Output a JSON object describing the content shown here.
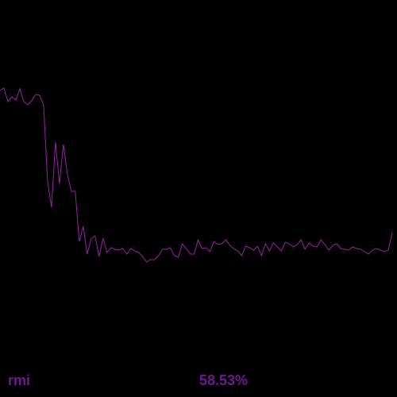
{
  "metric": {
    "name": "rmi",
    "value": "58.53%"
  },
  "colors": {
    "background": "#000000",
    "line": "#9b1fa8",
    "label": "#6d1a8a"
  },
  "chart_data": {
    "type": "line",
    "title": "",
    "xlabel": "",
    "ylabel": "",
    "grid": false,
    "legend": "none",
    "xlim": [
      0,
      100
    ],
    "ylim": [
      0,
      100
    ],
    "x": [
      0,
      1,
      2,
      3,
      4,
      5,
      6,
      7,
      8,
      9,
      10,
      11,
      12,
      13,
      14,
      15,
      16,
      17,
      18,
      19,
      20,
      21,
      22,
      23,
      24,
      25,
      26,
      27,
      28,
      29,
      30,
      31,
      32,
      33,
      34,
      35,
      36,
      37,
      38,
      39,
      40,
      41,
      42,
      43,
      44,
      45,
      46,
      47,
      48,
      49,
      50,
      51,
      52,
      53,
      54,
      55,
      56,
      57,
      58,
      59,
      60,
      61,
      62,
      63,
      64,
      65,
      66,
      67,
      68,
      69,
      70,
      71,
      72,
      73,
      74,
      75,
      76,
      77,
      78,
      79,
      80,
      81,
      82,
      83,
      84,
      85,
      86,
      87,
      88,
      89,
      90,
      91,
      92,
      93,
      94,
      95,
      96,
      97,
      98,
      99
    ],
    "series": [
      {
        "values": [
          77.2,
          77.8,
          74.4,
          75.6,
          74.8,
          77.6,
          74.4,
          73.6,
          74.6,
          76.2,
          76.0,
          73.6,
          54.4,
          47.8,
          64.2,
          53.8,
          63.6,
          56.2,
          51.8,
          51.8,
          39.2,
          43.0,
          36.0,
          39.8,
          40.6,
          35.4,
          40.0,
          36.4,
          37.6,
          37.2,
          37.0,
          37.4,
          36.0,
          37.4,
          36.8,
          36.4,
          35.4,
          34.0,
          34.6,
          34.6,
          35.6,
          37.2,
          37.2,
          37.6,
          35.6,
          35.2,
          38.6,
          37.4,
          36.0,
          36.0,
          39.6,
          37.4,
          37.6,
          36.6,
          39.2,
          38.4,
          38.6,
          39.6,
          38.2,
          37.4,
          36.8,
          35.6,
          38.0,
          37.6,
          37.0,
          38.0,
          35.6,
          38.6,
          36.8,
          38.8,
          37.8,
          36.8,
          39.0,
          38.6,
          37.8,
          38.4,
          39.6,
          37.2,
          38.8,
          38.0,
          37.8,
          39.6,
          38.4,
          37.0,
          38.2,
          38.6,
          37.4,
          37.2,
          37.0,
          37.8,
          37.4,
          37.2,
          36.6,
          36.0,
          37.0,
          37.4,
          37.0,
          36.6,
          37.0,
          41.4
        ]
      }
    ]
  }
}
